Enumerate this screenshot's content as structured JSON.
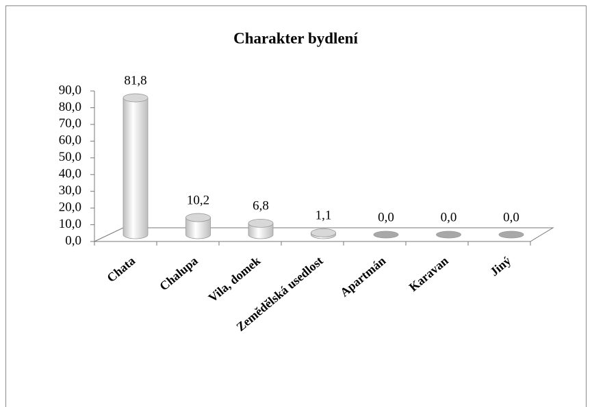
{
  "chart_data": {
    "type": "bar",
    "title": "Charakter bydlení",
    "categories": [
      "Chata",
      "Chalupa",
      "Vila, domek",
      "Zemědělská usedlost",
      "Apartmán",
      "Karavan",
      "Jiný"
    ],
    "values": [
      81.8,
      10.2,
      6.8,
      1.1,
      0,
      0,
      0
    ],
    "value_labels": [
      "81,8",
      "10,2",
      "6,8",
      "1,1",
      "0,0",
      "0,0",
      "0,0"
    ],
    "color": "#bdbdbd",
    "ylim": [
      0,
      90
    ],
    "yticks": [
      {
        "value": 0,
        "label": "0,0"
      },
      {
        "value": 10,
        "label": "10,0"
      },
      {
        "value": 20,
        "label": "20,0"
      },
      {
        "value": 30,
        "label": "30,0"
      },
      {
        "value": 40,
        "label": "40,0"
      },
      {
        "value": 50,
        "label": "50,0"
      },
      {
        "value": 60,
        "label": "60,0"
      },
      {
        "value": 70,
        "label": "70,0"
      },
      {
        "value": 80,
        "label": "80,0"
      },
      {
        "value": 90,
        "label": "90,0"
      }
    ]
  }
}
